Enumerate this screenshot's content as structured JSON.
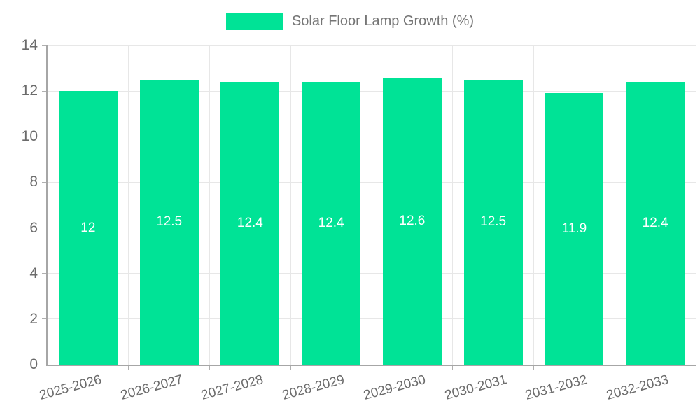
{
  "chart_data": {
    "type": "bar",
    "title": "Solar Floor Lamp Growth (%)",
    "categories": [
      "2025-2026",
      "2026-2027",
      "2027-2028",
      "2028-2029",
      "2029-2030",
      "2030-2031",
      "2031-2032",
      "2032-2033"
    ],
    "values": [
      12,
      12.5,
      12.4,
      12.4,
      12.6,
      12.5,
      11.9,
      12.4
    ],
    "xlabel": "",
    "ylabel": "",
    "ylim": [
      0,
      14
    ],
    "yticks": [
      0,
      2,
      4,
      6,
      8,
      10,
      12,
      14
    ],
    "grid": true,
    "legend_position": "top",
    "data_labels_position": "center",
    "colors": {
      "bar": "#00E396",
      "grid": "#e7e7e7",
      "axis": "#a6a6a6",
      "tick_mark": "#b0b0b0",
      "tick_text": "#6b6b6b",
      "legend_text": "#757575",
      "data_label": "#ffffff",
      "background": "#ffffff"
    }
  },
  "legend": {
    "label": "Solar Floor Lamp Growth (%)"
  }
}
